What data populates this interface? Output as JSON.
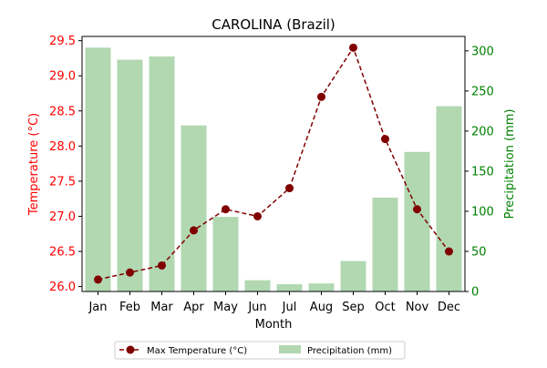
{
  "chart_data": {
    "type": "bar+line",
    "title": "CAROLINA (Brazil)",
    "xlabel": "Month",
    "categories": [
      "Jan",
      "Feb",
      "Mar",
      "Apr",
      "May",
      "Jun",
      "Jul",
      "Aug",
      "Sep",
      "Oct",
      "Nov",
      "Dec"
    ],
    "y_left": {
      "label": "Temperature (°C)",
      "color": "#ff0000",
      "lim": [
        25.93,
        29.56
      ],
      "ticks": [
        "26.0",
        "26.5",
        "27.0",
        "27.5",
        "28.0",
        "28.5",
        "29.0",
        "29.5"
      ]
    },
    "y_right": {
      "label": "Precipitation (mm)",
      "color": "#008000",
      "lim": [
        0,
        318
      ],
      "ticks": [
        "0",
        "50",
        "100",
        "150",
        "200",
        "250",
        "300"
      ]
    },
    "series": [
      {
        "name": "Max Temperature (°C)",
        "type": "line",
        "axis": "left",
        "color": "#800000",
        "values": [
          26.1,
          26.2,
          26.3,
          26.8,
          27.1,
          27.0,
          27.4,
          28.7,
          29.4,
          28.1,
          27.1,
          26.5
        ]
      },
      {
        "name": "Precipitation (mm)",
        "type": "bar",
        "axis": "right",
        "color": "#b1d8b1",
        "values": [
          304,
          289,
          293,
          207,
          93,
          14,
          9,
          10,
          38,
          117,
          174,
          231
        ]
      }
    ],
    "legend_position": "bottom-center",
    "grid": false
  }
}
